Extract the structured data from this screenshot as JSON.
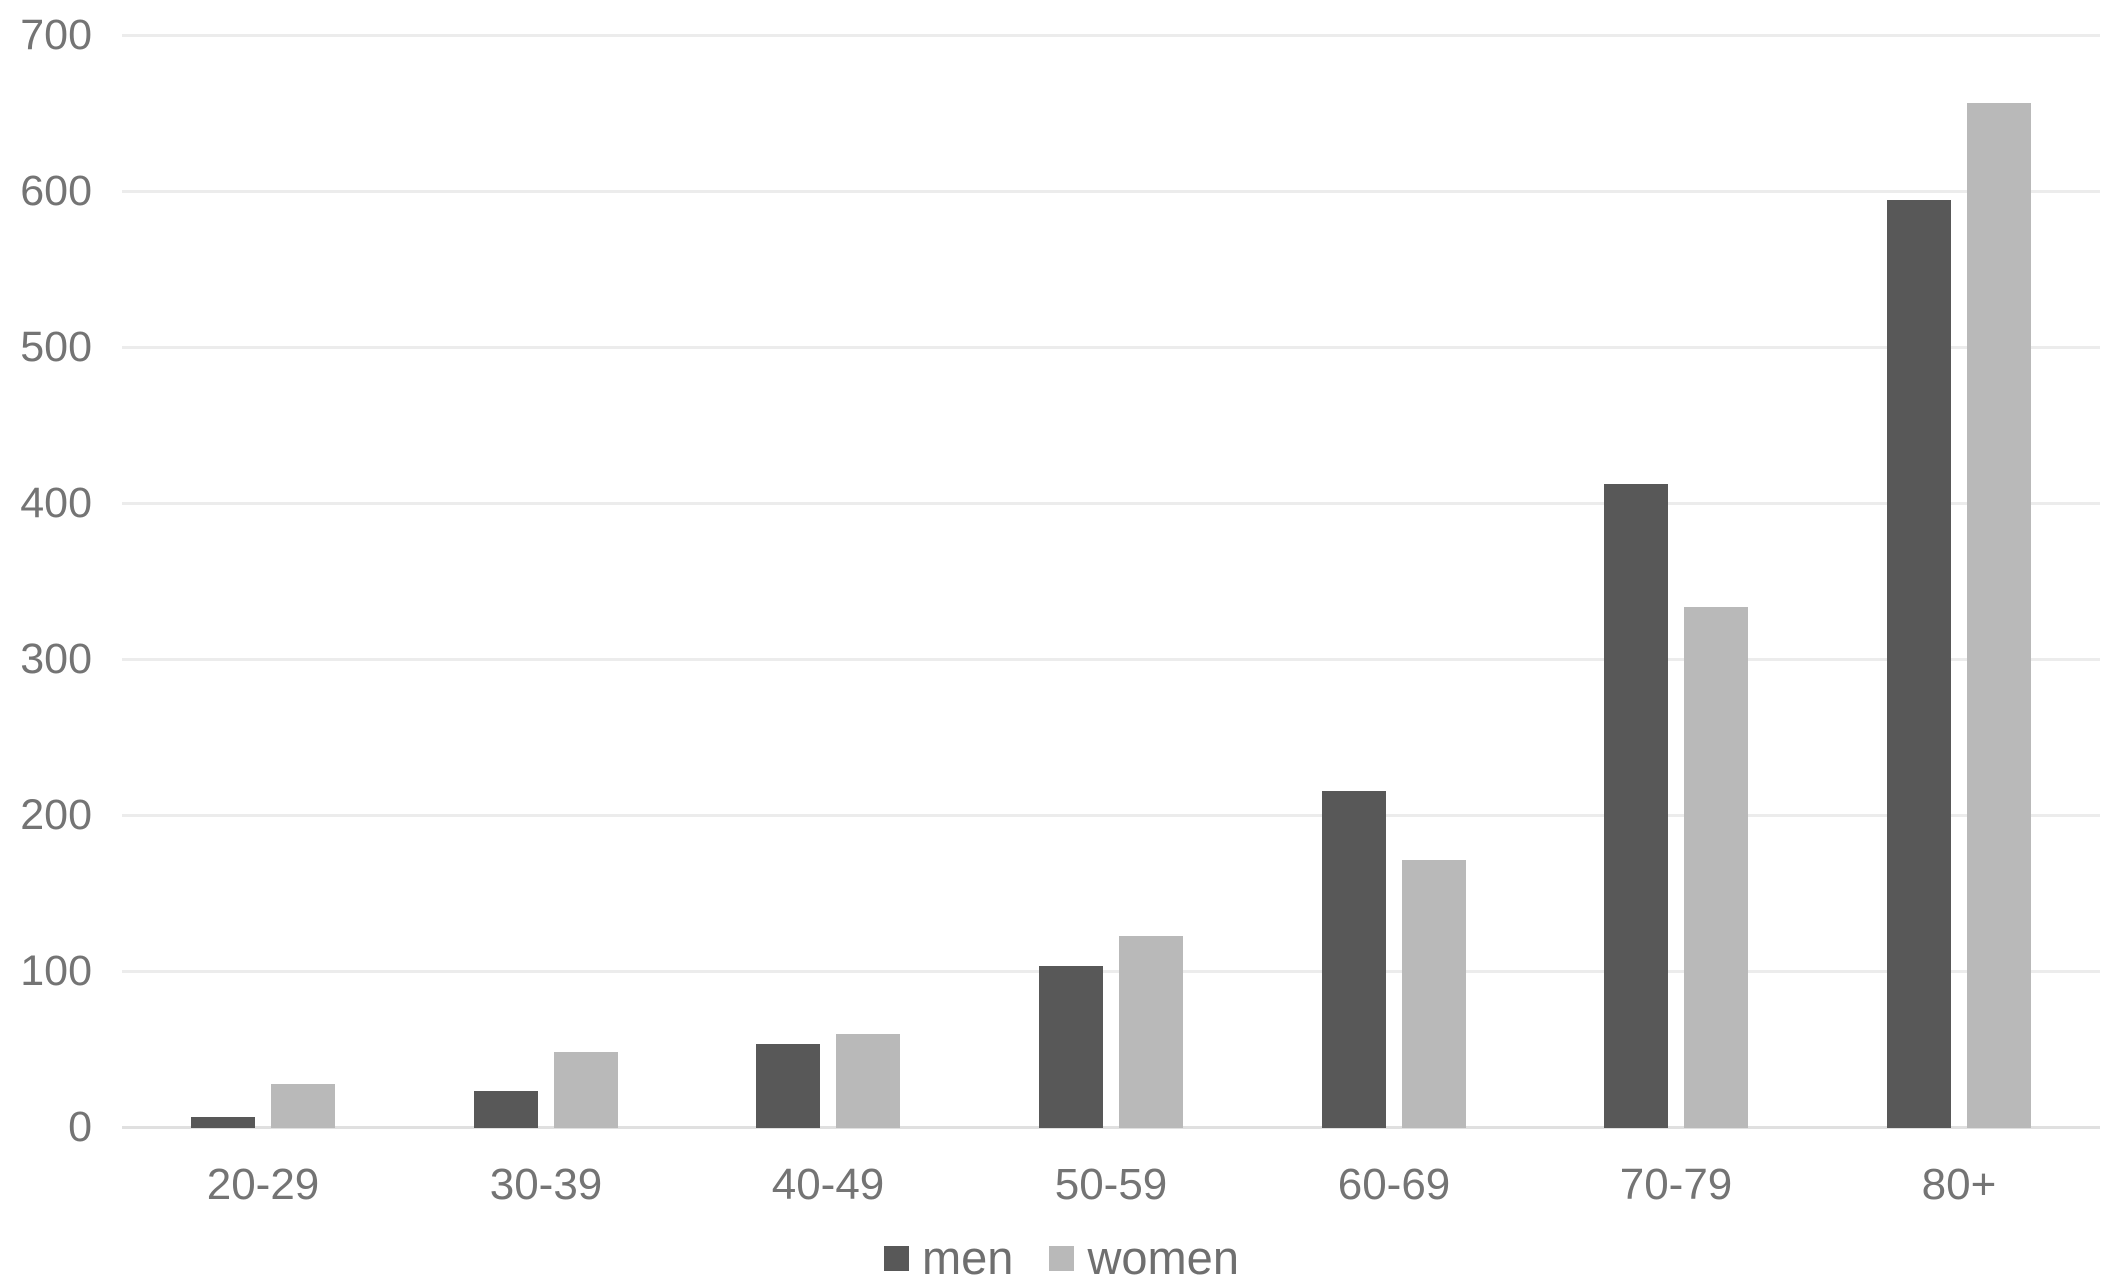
{
  "chart_data": {
    "type": "bar",
    "title": "",
    "categories": [
      "20-29",
      "30-39",
      "40-49",
      "50-59",
      "60-69",
      "70-79",
      "80+"
    ],
    "series": [
      {
        "name": "men",
        "color": "#585858",
        "values": [
          7,
          24,
          54,
          104,
          216,
          413,
          595
        ]
      },
      {
        "name": "women",
        "color": "#b9b9b9",
        "values": [
          28,
          49,
          60,
          123,
          172,
          334,
          657
        ]
      }
    ],
    "xlabel": "",
    "ylabel": "",
    "y_axis": {
      "min": 0,
      "max": 700,
      "tick_step": 100,
      "tick_labels": [
        "0",
        "100",
        "200",
        "300",
        "400",
        "500",
        "600",
        "700"
      ]
    },
    "grid": "horizontal-only",
    "legend_position": "bottom-center"
  }
}
